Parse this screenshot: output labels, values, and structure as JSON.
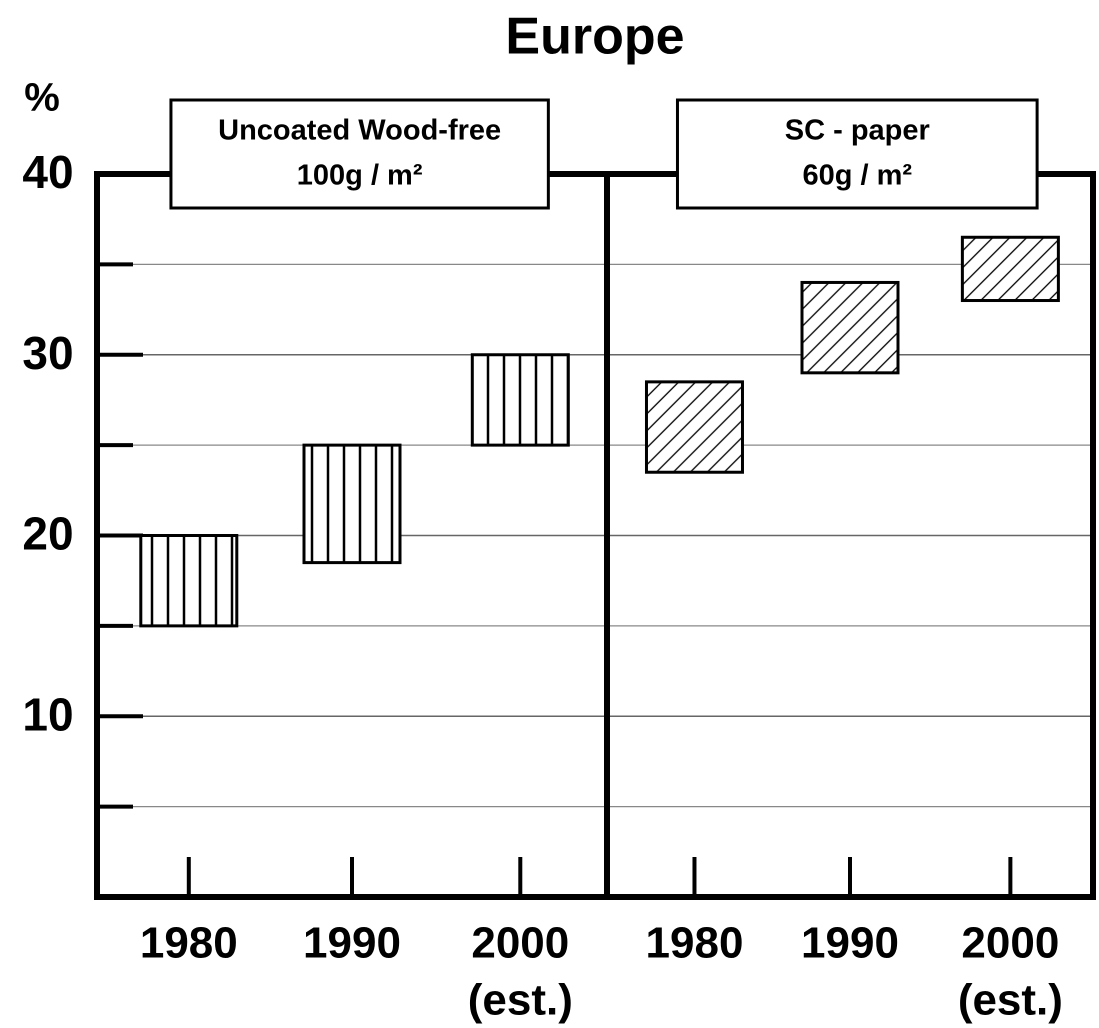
{
  "chart_data": {
    "type": "range-bar",
    "title": "Europe",
    "ylabel": "%",
    "ylim": [
      0,
      40
    ],
    "yticks": [
      10,
      20,
      30,
      40
    ],
    "minor_yticks": [
      5,
      15,
      25,
      35
    ],
    "grid": true,
    "panels": [
      {
        "title": [
          "Uncoated Wood-free",
          "100g / m²"
        ],
        "categories": [
          [
            "1980"
          ],
          [
            "1990"
          ],
          [
            "2000",
            "(est.)"
          ]
        ],
        "low": [
          15,
          18.5,
          25
        ],
        "high": [
          20,
          25,
          30
        ],
        "pattern": "vertical",
        "color": "#000000"
      },
      {
        "title": [
          "SC - paper",
          "60g / m²"
        ],
        "categories": [
          [
            "1980"
          ],
          [
            "1990"
          ],
          [
            "2000",
            "(est.)"
          ]
        ],
        "low": [
          23.5,
          29,
          33
        ],
        "high": [
          28.5,
          34,
          36.5
        ],
        "pattern": "diagonal",
        "color": "#000000"
      }
    ]
  }
}
